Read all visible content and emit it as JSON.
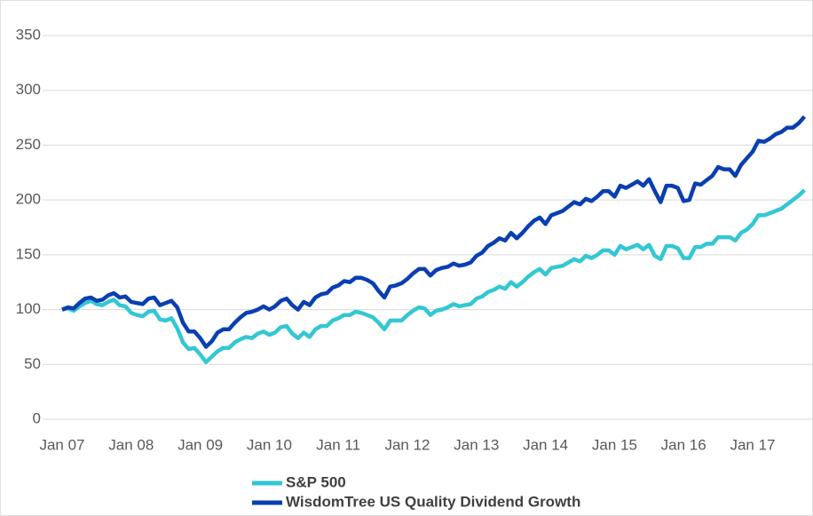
{
  "chart_data": {
    "type": "line",
    "categories": [
      "Jan 07",
      null,
      null,
      null,
      null,
      null,
      null,
      null,
      null,
      null,
      null,
      null,
      "Jan 08",
      null,
      null,
      null,
      null,
      null,
      null,
      null,
      null,
      null,
      null,
      null,
      "Jan 09",
      null,
      null,
      null,
      null,
      null,
      null,
      null,
      null,
      null,
      null,
      null,
      "Jan 10",
      null,
      null,
      null,
      null,
      null,
      null,
      null,
      null,
      null,
      null,
      null,
      "Jan 11",
      null,
      null,
      null,
      null,
      null,
      null,
      null,
      null,
      null,
      null,
      null,
      "Jan 12",
      null,
      null,
      null,
      null,
      null,
      null,
      null,
      null,
      null,
      null,
      null,
      "Jan 13",
      null,
      null,
      null,
      null,
      null,
      null,
      null,
      null,
      null,
      null,
      null,
      "Jan 14",
      null,
      null,
      null,
      null,
      null,
      null,
      null,
      null,
      null,
      null,
      null,
      "Jan 15",
      null,
      null,
      null,
      null,
      null,
      null,
      null,
      null,
      null,
      null,
      null,
      "Jan 16",
      null,
      null,
      null,
      null,
      null,
      null,
      null,
      null,
      null,
      null,
      null,
      "Jan 17",
      null,
      null,
      null,
      null,
      null,
      null,
      null,
      null,
      null
    ],
    "series": [
      {
        "name": "S&P 500",
        "color": "#33c7d4",
        "values": [
          100,
          101,
          99,
          103,
          106,
          108,
          105,
          104,
          107,
          109,
          104,
          103,
          97,
          95,
          94,
          98,
          99,
          91,
          90,
          92,
          83,
          70,
          64,
          65,
          59,
          52,
          57,
          62,
          65,
          65,
          70,
          73,
          75,
          74,
          78,
          80,
          77,
          79,
          84,
          85,
          78,
          74,
          79,
          75,
          82,
          85,
          85,
          90,
          92,
          95,
          95,
          98,
          97,
          95,
          93,
          88,
          82,
          90,
          90,
          90,
          95,
          99,
          102,
          101,
          95,
          99,
          100,
          102,
          105,
          103,
          104,
          105,
          110,
          112,
          116,
          118,
          121,
          119,
          125,
          121,
          125,
          130,
          134,
          137,
          132,
          138,
          139,
          140,
          143,
          146,
          144,
          149,
          147,
          150,
          154,
          154,
          150,
          158,
          155,
          157,
          159,
          155,
          159,
          149,
          146,
          158,
          158,
          156,
          147,
          147,
          157,
          157,
          160,
          160,
          166,
          166,
          166,
          163,
          170,
          173,
          178,
          186,
          186,
          188,
          190,
          192,
          196,
          200,
          204,
          209
        ]
      },
      {
        "name": "WisdomTree US Quality Dividend Growth",
        "color": "#0a3fb0",
        "values": [
          100,
          102,
          101,
          106,
          110,
          111,
          108,
          109,
          113,
          115,
          111,
          112,
          107,
          106,
          105,
          110,
          111,
          104,
          106,
          108,
          102,
          88,
          80,
          80,
          74,
          66,
          71,
          79,
          82,
          82,
          88,
          93,
          97,
          98,
          100,
          103,
          100,
          103,
          108,
          110,
          104,
          100,
          107,
          104,
          111,
          114,
          115,
          120,
          122,
          126,
          125,
          129,
          129,
          127,
          124,
          117,
          111,
          121,
          122,
          124,
          128,
          133,
          137,
          137,
          131,
          136,
          138,
          139,
          142,
          140,
          141,
          143,
          149,
          152,
          158,
          161,
          165,
          163,
          170,
          165,
          170,
          176,
          181,
          184,
          178,
          186,
          188,
          190,
          194,
          198,
          196,
          201,
          199,
          203,
          208,
          208,
          203,
          213,
          211,
          214,
          217,
          213,
          219,
          208,
          198,
          213,
          213,
          211,
          199,
          200,
          215,
          214,
          218,
          222,
          230,
          228,
          228,
          222,
          232,
          238,
          244,
          254,
          253,
          256,
          260,
          262,
          266,
          266,
          270,
          276
        ]
      }
    ],
    "ylim": [
      0,
      350
    ],
    "yticks": [
      0,
      50,
      100,
      150,
      200,
      250,
      300,
      350
    ],
    "grid": true,
    "legend": "bottom"
  }
}
